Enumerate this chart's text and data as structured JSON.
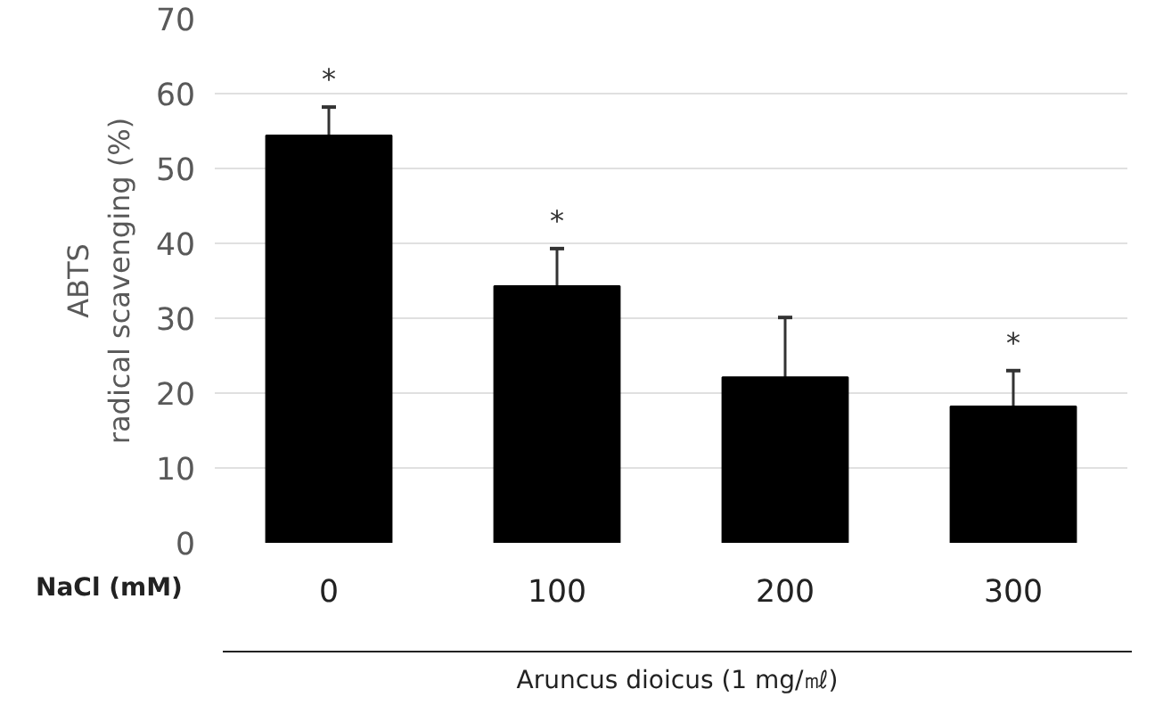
{
  "chart_data": {
    "type": "bar",
    "xlabel": "NaCl (mM)",
    "ylabel": "ABTS\nradical scavenging (%)",
    "categories": [
      "0",
      "100",
      "200",
      "300"
    ],
    "series": [
      {
        "color": "#000000",
        "values": [
          54.4,
          34.3,
          22.1,
          18.2
        ],
        "errors": [
          [
            54.4,
            58.2
          ],
          [
            34.3,
            39.3
          ],
          [
            22.1,
            30.1
          ],
          [
            18.2,
            23.0
          ]
        ],
        "value_labels": [
          "*",
          "*",
          null,
          "*"
        ]
      }
    ],
    "ylim": [
      0,
      70
    ],
    "yticks": [
      0,
      10,
      20,
      30,
      40,
      50,
      60,
      70
    ],
    "grid": "y",
    "annotations": [
      "Aruncus dioicus (1 mg/㎖)"
    ]
  }
}
